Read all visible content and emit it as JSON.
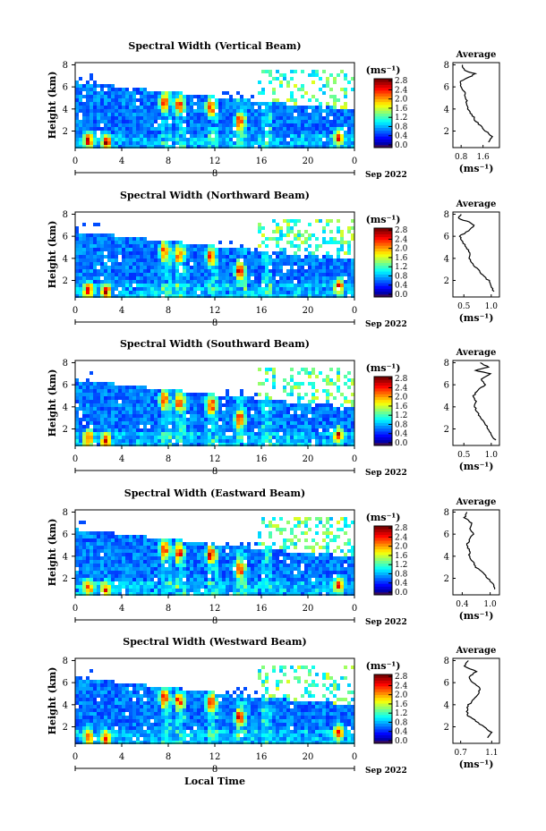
{
  "chart_data": [
    {
      "type": "heatmap",
      "title": "Spectral Width (Vertical Beam)",
      "xlabel": "",
      "ylabel": "Height (km)",
      "x_ticks": [
        "0",
        "4",
        "8",
        "12",
        "16",
        "20",
        "0"
      ],
      "y_ticks": [
        "2",
        "4",
        "6",
        "8"
      ],
      "date_label": "8",
      "date_suffix": "Sep 2022",
      "xlim": [
        0,
        24
      ],
      "ylim": [
        0.5,
        8.2
      ],
      "colorbar": {
        "unit": "(ms⁻¹)",
        "tick_labels": [
          "0.0",
          "0.4",
          "0.8",
          "1.2",
          "1.6",
          "2.0",
          "2.4",
          "2.8"
        ],
        "range": [
          0,
          3.0
        ]
      },
      "profile": {
        "title": "Average",
        "xlabel": "(ms⁻¹)",
        "x_ticks": [
          "0.8",
          "1.6"
        ],
        "xlim": [
          0.5,
          2.2
        ],
        "ylim": [
          0.5,
          8.2
        ],
        "y_ticks": [
          "2",
          "4",
          "6",
          "8"
        ],
        "values": [
          [
            1.8,
            1.0
          ],
          [
            1.95,
            1.5
          ],
          [
            1.7,
            2.0
          ],
          [
            1.5,
            2.5
          ],
          [
            1.3,
            3.0
          ],
          [
            1.2,
            3.5
          ],
          [
            1.05,
            4.0
          ],
          [
            1.0,
            4.5
          ],
          [
            0.98,
            5.0
          ],
          [
            0.92,
            5.5
          ],
          [
            0.8,
            6.0
          ],
          [
            0.75,
            6.5
          ],
          [
            1.2,
            7.0
          ],
          [
            1.3,
            7.2
          ],
          [
            0.9,
            7.5
          ],
          [
            0.85,
            8.0
          ]
        ]
      }
    },
    {
      "type": "heatmap",
      "title": "Spectral Width (Northward Beam)",
      "xlabel": "",
      "ylabel": "Height (km)",
      "x_ticks": [
        "0",
        "4",
        "8",
        "12",
        "16",
        "20",
        "0"
      ],
      "y_ticks": [
        "2",
        "4",
        "6",
        "8"
      ],
      "date_label": "8",
      "date_suffix": "Sep 2022",
      "xlim": [
        0,
        24
      ],
      "ylim": [
        0.5,
        8.2
      ],
      "colorbar": {
        "unit": "(ms⁻¹)",
        "tick_labels": [
          "0.0",
          "0.4",
          "0.8",
          "1.2",
          "1.6",
          "2.0",
          "2.4",
          "2.8"
        ],
        "range": [
          0,
          3.0
        ]
      },
      "profile": {
        "title": "Average",
        "xlabel": "(ms⁻¹)",
        "x_ticks": [
          "0.5",
          "1.0"
        ],
        "xlim": [
          0.3,
          1.15
        ],
        "ylim": [
          0.5,
          8.2
        ],
        "y_ticks": [
          "2",
          "4",
          "6",
          "8"
        ],
        "values": [
          [
            1.05,
            1.0
          ],
          [
            1.0,
            1.5
          ],
          [
            0.95,
            2.0
          ],
          [
            0.85,
            2.5
          ],
          [
            0.75,
            3.0
          ],
          [
            0.65,
            3.5
          ],
          [
            0.6,
            4.0
          ],
          [
            0.62,
            4.5
          ],
          [
            0.55,
            5.0
          ],
          [
            0.48,
            5.5
          ],
          [
            0.42,
            6.0
          ],
          [
            0.58,
            6.5
          ],
          [
            0.7,
            7.0
          ],
          [
            0.6,
            7.3
          ],
          [
            0.4,
            7.6
          ],
          [
            0.45,
            8.0
          ]
        ]
      }
    },
    {
      "type": "heatmap",
      "title": "Spectral Width (Southward Beam)",
      "xlabel": "",
      "ylabel": "Height (km)",
      "x_ticks": [
        "0",
        "4",
        "8",
        "12",
        "16",
        "20",
        "0"
      ],
      "y_ticks": [
        "2",
        "4",
        "6",
        "8"
      ],
      "date_label": "8",
      "date_suffix": "Sep 2022",
      "xlim": [
        0,
        24
      ],
      "ylim": [
        0.5,
        8.2
      ],
      "colorbar": {
        "unit": "(ms⁻¹)",
        "tick_labels": [
          "0.0",
          "0.4",
          "0.8",
          "1.2",
          "1.6",
          "2.0",
          "2.4",
          "2.8"
        ],
        "range": [
          0,
          3.0
        ]
      },
      "profile": {
        "title": "Average",
        "xlabel": "(ms⁻¹)",
        "x_ticks": [
          "0.5",
          "1.0"
        ],
        "xlim": [
          0.3,
          1.15
        ],
        "ylim": [
          0.5,
          8.2
        ],
        "y_ticks": [
          "2",
          "4",
          "6",
          "8"
        ],
        "values": [
          [
            1.08,
            1.0
          ],
          [
            1.0,
            1.5
          ],
          [
            0.95,
            2.0
          ],
          [
            0.88,
            2.5
          ],
          [
            0.8,
            3.0
          ],
          [
            0.75,
            3.5
          ],
          [
            0.7,
            4.0
          ],
          [
            0.72,
            4.5
          ],
          [
            0.68,
            5.0
          ],
          [
            0.75,
            5.5
          ],
          [
            0.9,
            6.0
          ],
          [
            0.82,
            6.5
          ],
          [
            1.0,
            7.0
          ],
          [
            0.7,
            7.3
          ],
          [
            0.95,
            7.6
          ],
          [
            0.8,
            8.0
          ]
        ]
      }
    },
    {
      "type": "heatmap",
      "title": "Spectral Width (Eastward Beam)",
      "xlabel": "",
      "ylabel": "Height (km)",
      "x_ticks": [
        "0",
        "4",
        "8",
        "12",
        "16",
        "20",
        "0"
      ],
      "y_ticks": [
        "2",
        "4",
        "6",
        "8"
      ],
      "date_label": "8",
      "date_suffix": "Sep 2022",
      "xlim": [
        0,
        24
      ],
      "ylim": [
        0.5,
        8.2
      ],
      "colorbar": {
        "unit": "(ms⁻¹)",
        "tick_labels": [
          "0.0",
          "0.4",
          "0.8",
          "1.2",
          "1.6",
          "2.0",
          "2.4",
          "2.8"
        ],
        "range": [
          0,
          3.0
        ]
      },
      "profile": {
        "title": "Average",
        "xlabel": "(ms⁻¹)",
        "x_ticks": [
          "0.4",
          "1.0"
        ],
        "xlim": [
          0.2,
          1.2
        ],
        "ylim": [
          0.5,
          8.2
        ],
        "y_ticks": [
          "2",
          "4",
          "6",
          "8"
        ],
        "values": [
          [
            1.1,
            1.0
          ],
          [
            1.05,
            1.5
          ],
          [
            0.95,
            2.0
          ],
          [
            0.85,
            2.5
          ],
          [
            0.7,
            3.0
          ],
          [
            0.62,
            3.5
          ],
          [
            0.55,
            4.0
          ],
          [
            0.55,
            4.5
          ],
          [
            0.5,
            5.0
          ],
          [
            0.55,
            5.5
          ],
          [
            0.65,
            6.0
          ],
          [
            0.55,
            6.5
          ],
          [
            0.6,
            7.0
          ],
          [
            0.45,
            7.5
          ],
          [
            0.5,
            8.0
          ]
        ]
      }
    },
    {
      "type": "heatmap",
      "title": "Spectral Width (Westward Beam)",
      "xlabel": "Local Time",
      "ylabel": "Height (km)",
      "x_ticks": [
        "0",
        "4",
        "8",
        "12",
        "16",
        "20",
        "0"
      ],
      "y_ticks": [
        "2",
        "4",
        "6",
        "8"
      ],
      "date_label": "8",
      "date_suffix": "Sep 2022",
      "xlim": [
        0,
        24
      ],
      "ylim": [
        0.5,
        8.2
      ],
      "colorbar": {
        "unit": "(ms⁻¹)",
        "tick_labels": [
          "0.0",
          "0.4",
          "0.8",
          "1.2",
          "1.6",
          "2.0",
          "2.4",
          "2.8"
        ],
        "range": [
          0,
          3.0
        ]
      },
      "profile": {
        "title": "Average",
        "xlabel": "(ms⁻¹)",
        "x_ticks": [
          "0.7",
          "1.1"
        ],
        "xlim": [
          0.6,
          1.2
        ],
        "ylim": [
          0.5,
          8.2
        ],
        "y_ticks": [
          "2",
          "4",
          "6",
          "8"
        ],
        "values": [
          [
            1.05,
            1.0
          ],
          [
            1.1,
            1.5
          ],
          [
            1.0,
            2.0
          ],
          [
            0.9,
            2.5
          ],
          [
            0.8,
            3.0
          ],
          [
            0.78,
            3.5
          ],
          [
            0.8,
            4.0
          ],
          [
            0.88,
            4.5
          ],
          [
            0.92,
            5.0
          ],
          [
            0.95,
            5.5
          ],
          [
            0.85,
            6.0
          ],
          [
            0.8,
            6.5
          ],
          [
            0.9,
            7.0
          ],
          [
            0.75,
            7.5
          ],
          [
            0.8,
            8.0
          ]
        ]
      }
    }
  ]
}
